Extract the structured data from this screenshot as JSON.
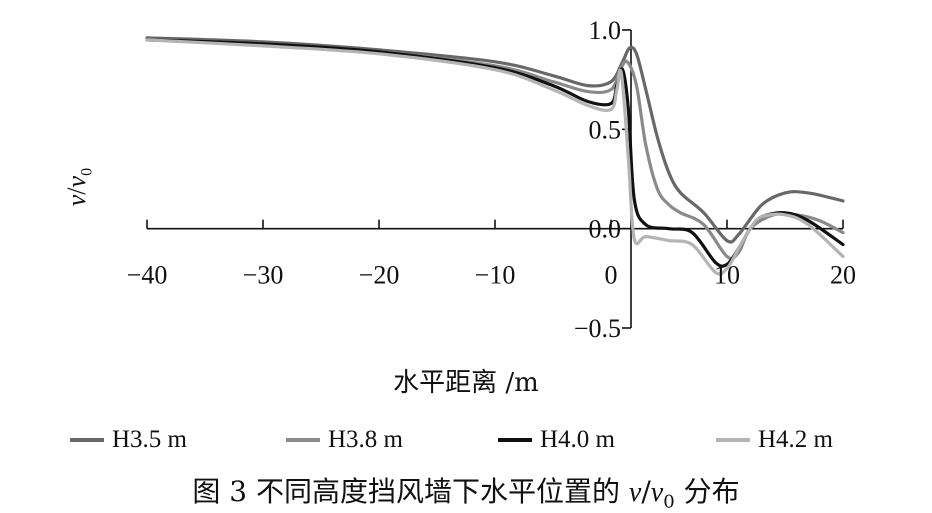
{
  "chart_data": {
    "type": "line",
    "xlabel": "水平距离 /m",
    "ylabel": {
      "var": "v",
      "sep": "/",
      "var2": "v",
      "sub": "0"
    },
    "xlim": [
      -40,
      20
    ],
    "ylim": [
      -0.5,
      1.0
    ],
    "x_ticks": [
      "−40",
      "−30",
      "−20",
      "−10",
      "0",
      "10",
      "20"
    ],
    "x_tick_values": [
      -40,
      -30,
      -20,
      -10,
      0,
      10,
      20
    ],
    "y_ticks": [
      "1.0",
      "0.5",
      "0.0",
      "−0.5"
    ],
    "y_tick_values": [
      1.0,
      0.5,
      0.0,
      -0.5
    ],
    "grid": false,
    "legend_position": "bottom",
    "series": [
      {
        "name": "H3.5 m",
        "color": "#686868",
        "points": [
          [
            -40,
            0.96
          ],
          [
            -30,
            0.94
          ],
          [
            -20,
            0.9
          ],
          [
            -10,
            0.84
          ],
          [
            -5,
            0.77
          ],
          [
            -2,
            0.72
          ],
          [
            0,
            0.74
          ],
          [
            1,
            0.84
          ],
          [
            1.6,
            0.91
          ],
          [
            2.2,
            0.88
          ],
          [
            3,
            0.7
          ],
          [
            4,
            0.46
          ],
          [
            5,
            0.28
          ],
          [
            6,
            0.18
          ],
          [
            8,
            0.08
          ],
          [
            10,
            -0.06
          ],
          [
            11,
            -0.03
          ],
          [
            13,
            0.12
          ],
          [
            15,
            0.18
          ],
          [
            17,
            0.18
          ],
          [
            20,
            0.14
          ]
        ]
      },
      {
        "name": "H3.8 m",
        "color": "#8a8a8a",
        "points": [
          [
            -40,
            0.95
          ],
          [
            -30,
            0.93
          ],
          [
            -20,
            0.89
          ],
          [
            -10,
            0.82
          ],
          [
            -5,
            0.74
          ],
          [
            -2,
            0.69
          ],
          [
            0,
            0.7
          ],
          [
            0.8,
            0.8
          ],
          [
            1.4,
            0.84
          ],
          [
            2.2,
            0.72
          ],
          [
            3,
            0.42
          ],
          [
            4,
            0.2
          ],
          [
            5,
            0.12
          ],
          [
            6,
            0.08
          ],
          [
            8,
            0.02
          ],
          [
            10,
            -0.14
          ],
          [
            11,
            -0.12
          ],
          [
            12,
            0.0
          ],
          [
            14,
            0.07
          ],
          [
            16,
            0.07
          ],
          [
            18,
            0.04
          ],
          [
            20,
            -0.02
          ]
        ]
      },
      {
        "name": "H4.0 m",
        "color": "#111111",
        "points": [
          [
            -40,
            0.95
          ],
          [
            -30,
            0.93
          ],
          [
            -20,
            0.89
          ],
          [
            -10,
            0.81
          ],
          [
            -5,
            0.72
          ],
          [
            -2,
            0.64
          ],
          [
            0,
            0.63
          ],
          [
            0.5,
            0.72
          ],
          [
            1,
            0.8
          ],
          [
            1.5,
            0.6
          ],
          [
            2,
            0.15
          ],
          [
            3,
            0.02
          ],
          [
            5,
            0.0
          ],
          [
            7,
            -0.02
          ],
          [
            9,
            -0.17
          ],
          [
            10,
            -0.18
          ],
          [
            11,
            -0.1
          ],
          [
            12,
            0.0
          ],
          [
            13,
            0.06
          ],
          [
            15,
            0.08
          ],
          [
            17,
            0.04
          ],
          [
            20,
            -0.08
          ]
        ]
      },
      {
        "name": "H4.2 m",
        "color": "#b4b4b4",
        "points": [
          [
            -40,
            0.95
          ],
          [
            -30,
            0.92
          ],
          [
            -20,
            0.88
          ],
          [
            -10,
            0.8
          ],
          [
            -5,
            0.7
          ],
          [
            -2,
            0.62
          ],
          [
            0,
            0.6
          ],
          [
            0.5,
            0.7
          ],
          [
            0.9,
            0.78
          ],
          [
            1.5,
            0.35
          ],
          [
            2,
            -0.05
          ],
          [
            3,
            -0.04
          ],
          [
            5,
            -0.06
          ],
          [
            7,
            -0.08
          ],
          [
            9,
            -0.22
          ],
          [
            10,
            -0.2
          ],
          [
            11,
            -0.1
          ],
          [
            12,
            0.0
          ],
          [
            13,
            0.06
          ],
          [
            15,
            0.07
          ],
          [
            17,
            0.02
          ],
          [
            20,
            -0.14
          ]
        ]
      }
    ]
  },
  "caption": {
    "prefix": "图 3   不同高度挡风墙下水平位置的 ",
    "var": "v",
    "sep": "/",
    "var2": "v",
    "sub": "0",
    "suffix": " 分布"
  }
}
